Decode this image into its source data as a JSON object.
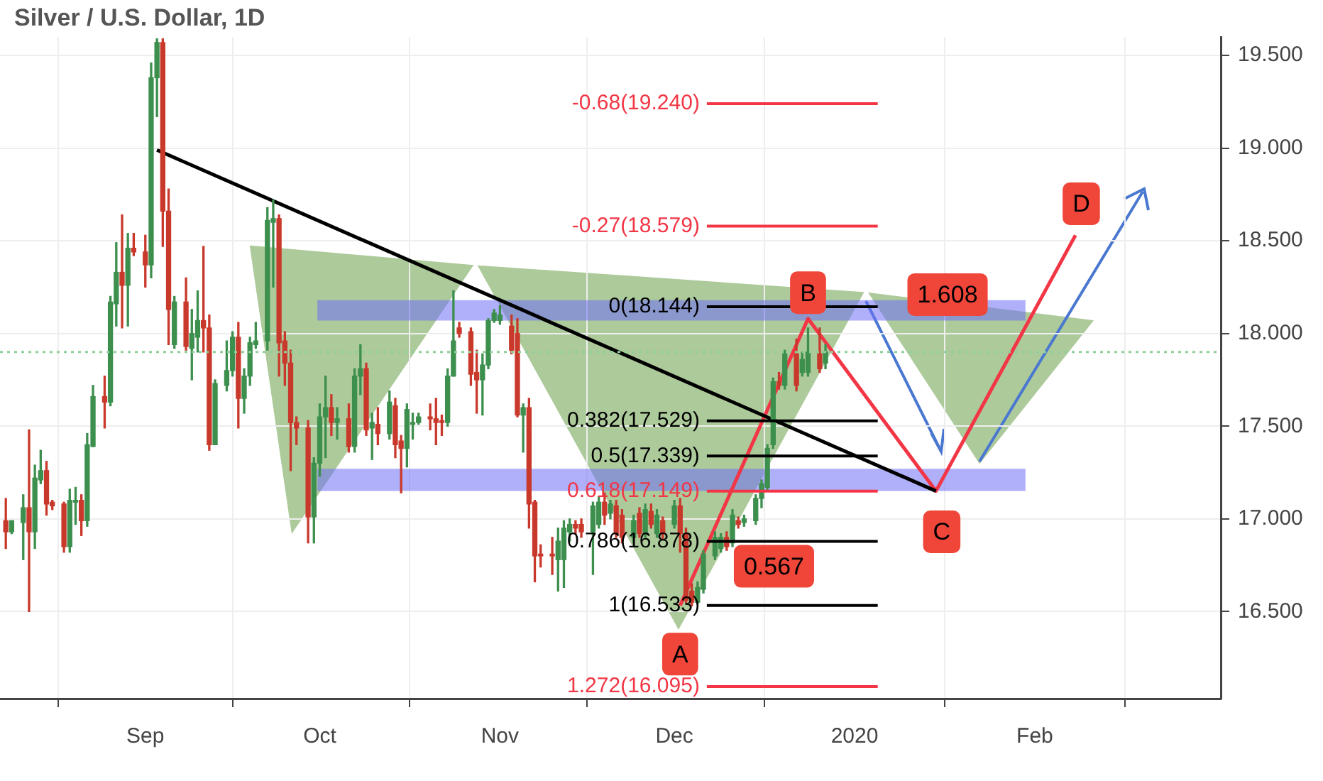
{
  "chart_data": {
    "type": "candlestick",
    "title": "Silver / U.S. Dollar, 1D",
    "x": [
      "2019-08-08",
      "2019-08-09",
      "2019-08-11",
      "2019-08-12",
      "2019-08-13",
      "2019-08-14",
      "2019-08-15",
      "2019-08-16",
      "2019-08-18",
      "2019-08-19",
      "2019-08-20",
      "2019-08-21",
      "2019-08-22",
      "2019-08-23",
      "2019-08-25",
      "2019-08-26",
      "2019-08-27",
      "2019-08-28",
      "2019-08-29",
      "2019-08-30",
      "2019-09-01",
      "2019-09-02",
      "2019-09-03",
      "2019-09-04",
      "2019-09-05",
      "2019-09-06",
      "2019-09-08",
      "2019-09-09",
      "2019-09-10",
      "2019-09-11",
      "2019-09-12",
      "2019-09-13",
      "2019-09-15",
      "2019-09-16",
      "2019-09-17",
      "2019-09-18",
      "2019-09-19",
      "2019-09-20",
      "2019-09-22",
      "2019-09-23",
      "2019-09-24",
      "2019-09-25",
      "2019-09-26",
      "2019-09-27",
      "2019-09-29",
      "2019-09-30",
      "2019-10-01",
      "2019-10-02",
      "2019-10-03",
      "2019-10-04",
      "2019-10-06",
      "2019-10-07",
      "2019-10-08",
      "2019-10-09",
      "2019-10-10",
      "2019-10-11",
      "2019-10-13",
      "2019-10-14",
      "2019-10-15",
      "2019-10-16",
      "2019-10-17",
      "2019-10-18",
      "2019-10-20",
      "2019-10-21",
      "2019-10-22",
      "2019-10-23",
      "2019-10-24",
      "2019-10-25",
      "2019-10-27",
      "2019-10-28",
      "2019-10-29",
      "2019-10-30",
      "2019-10-31",
      "2019-11-01",
      "2019-11-03",
      "2019-11-04",
      "2019-11-05",
      "2019-11-06",
      "2019-11-07",
      "2019-11-08",
      "2019-11-10",
      "2019-11-11",
      "2019-11-12",
      "2019-11-13",
      "2019-11-14",
      "2019-11-15",
      "2019-11-17",
      "2019-11-18",
      "2019-11-19",
      "2019-11-20",
      "2019-11-21",
      "2019-11-22",
      "2019-11-24",
      "2019-11-25",
      "2019-11-26",
      "2019-11-27",
      "2019-11-28",
      "2019-11-29",
      "2019-12-01",
      "2019-12-02",
      "2019-12-03",
      "2019-12-04",
      "2019-12-05",
      "2019-12-06",
      "2019-12-08",
      "2019-12-09",
      "2019-12-10",
      "2019-12-11",
      "2019-12-12",
      "2019-12-13",
      "2019-12-15",
      "2019-12-16",
      "2019-12-17",
      "2019-12-18",
      "2019-12-19",
      "2019-12-20",
      "2019-12-22",
      "2019-12-23",
      "2019-12-24",
      "2019-12-26",
      "2019-12-27"
    ],
    "ohlc": [
      [
        16.99,
        17.11,
        16.84,
        16.93
      ],
      [
        16.93,
        16.99,
        16.92,
        16.99
      ],
      [
        16.98,
        17.13,
        16.78,
        17.06
      ],
      [
        17.06,
        17.48,
        16.5,
        16.93
      ],
      [
        16.93,
        17.29,
        16.84,
        17.22
      ],
      [
        17.21,
        17.37,
        17.19,
        17.26
      ],
      [
        17.26,
        17.31,
        17.02,
        17.08
      ],
      [
        17.09,
        17.1,
        17.05,
        17.07
      ],
      [
        17.08,
        17.09,
        16.82,
        16.85
      ],
      [
        16.85,
        17.16,
        16.82,
        17.1
      ],
      [
        17.09,
        17.17,
        16.97,
        17.1
      ],
      [
        17.1,
        17.13,
        16.91,
        16.99
      ],
      [
        16.99,
        17.46,
        16.96,
        17.4
      ],
      [
        17.39,
        17.72,
        17.39,
        17.66
      ],
      [
        17.66,
        17.77,
        17.49,
        17.63
      ],
      [
        17.63,
        18.2,
        17.61,
        18.17
      ],
      [
        18.16,
        18.49,
        18.04,
        18.33
      ],
      [
        18.33,
        18.64,
        18.03,
        18.26
      ],
      [
        18.26,
        18.54,
        18.04,
        18.46
      ],
      [
        18.46,
        18.54,
        18.42,
        18.44
      ],
      [
        18.44,
        18.53,
        18.25,
        18.37
      ],
      [
        18.37,
        19.46,
        18.3,
        19.38
      ],
      [
        19.38,
        19.59,
        19.17,
        19.57
      ],
      [
        19.57,
        19.59,
        18.47,
        18.66
      ],
      [
        18.66,
        18.78,
        17.94,
        18.13
      ],
      [
        17.94,
        18.2,
        17.92,
        18.17
      ],
      [
        18.17,
        18.3,
        17.91,
        17.93
      ],
      [
        17.92,
        18.13,
        17.75,
        18.0
      ],
      [
        17.98,
        18.23,
        17.9,
        18.07
      ],
      [
        18.07,
        18.47,
        17.9,
        18.03
      ],
      [
        18.03,
        18.1,
        17.37,
        17.4
      ],
      [
        17.4,
        17.75,
        17.4,
        17.73
      ],
      [
        17.72,
        17.96,
        17.69,
        17.8
      ],
      [
        17.8,
        18.01,
        17.77,
        17.98
      ],
      [
        17.98,
        18.06,
        17.49,
        17.65
      ],
      [
        17.65,
        17.81,
        17.57,
        17.77
      ],
      [
        17.77,
        17.98,
        17.72,
        17.95
      ],
      [
        17.94,
        18.06,
        17.92,
        17.96
      ],
      [
        17.96,
        18.68,
        17.91,
        18.61
      ],
      [
        18.6,
        18.72,
        18.25,
        18.62
      ],
      [
        18.62,
        18.64,
        17.77,
        17.95
      ],
      [
        17.96,
        18.01,
        17.72,
        17.84
      ],
      [
        17.84,
        17.91,
        17.26,
        17.52
      ],
      [
        17.52,
        17.55,
        17.4,
        17.49
      ],
      [
        17.49,
        17.53,
        16.87,
        17.01
      ],
      [
        17.01,
        17.33,
        16.87,
        17.3
      ],
      [
        17.3,
        17.62,
        17.23,
        17.55
      ],
      [
        17.55,
        17.77,
        17.33,
        17.6
      ],
      [
        17.6,
        17.67,
        17.45,
        17.52
      ],
      [
        17.52,
        17.6,
        17.43,
        17.54
      ],
      [
        17.54,
        17.62,
        17.36,
        17.39
      ],
      [
        17.39,
        17.81,
        17.36,
        17.77
      ],
      [
        17.77,
        17.94,
        17.67,
        17.81
      ],
      [
        17.81,
        17.84,
        17.45,
        17.48
      ],
      [
        17.49,
        17.57,
        17.32,
        17.52
      ],
      [
        17.51,
        17.6,
        17.4,
        17.46
      ],
      [
        17.46,
        17.69,
        17.43,
        17.63
      ],
      [
        17.61,
        17.65,
        17.33,
        17.4
      ],
      [
        17.42,
        17.45,
        17.14,
        17.38
      ],
      [
        17.38,
        17.62,
        17.28,
        17.59
      ],
      [
        17.51,
        17.57,
        17.43,
        17.52
      ],
      [
        17.52,
        17.57,
        17.51,
        17.55
      ],
      [
        17.55,
        17.62,
        17.48,
        17.54
      ],
      [
        17.54,
        17.65,
        17.4,
        17.52
      ],
      [
        17.53,
        17.56,
        17.45,
        17.52
      ],
      [
        17.52,
        17.81,
        17.5,
        17.77
      ],
      [
        17.77,
        18.23,
        17.77,
        17.96
      ],
      [
        18.03,
        18.06,
        17.98,
        18.0
      ],
      [
        18.01,
        18.03,
        17.72,
        17.78
      ],
      [
        17.79,
        17.91,
        17.57,
        17.75
      ],
      [
        17.75,
        17.89,
        17.56,
        17.83
      ],
      [
        17.83,
        18.08,
        17.81,
        18.07
      ],
      [
        18.07,
        18.13,
        18.06,
        18.11
      ],
      [
        18.07,
        18.15,
        18.05,
        18.1
      ],
      [
        18.04,
        18.1,
        17.89,
        17.91
      ],
      [
        18.0,
        18.08,
        17.55,
        17.56
      ],
      [
        17.56,
        17.62,
        17.36,
        17.6
      ],
      [
        17.6,
        17.65,
        16.95,
        17.08
      ],
      [
        17.09,
        17.1,
        16.66,
        16.8
      ],
      [
        16.81,
        16.86,
        16.74,
        16.8
      ],
      [
        16.81,
        16.9,
        16.7,
        16.8
      ],
      [
        16.78,
        16.95,
        16.61,
        16.88
      ],
      [
        16.78,
        16.99,
        16.63,
        16.95
      ],
      [
        16.93,
        17.0,
        16.88,
        16.97
      ],
      [
        16.97,
        16.99,
        16.92,
        16.95
      ],
      [
        16.97,
        17.0,
        16.9,
        16.93
      ],
      [
        16.93,
        17.09,
        16.7,
        17.07
      ],
      [
        16.97,
        17.12,
        16.95,
        17.09
      ],
      [
        17.09,
        17.14,
        16.97,
        17.02
      ],
      [
        17.03,
        17.1,
        17.0,
        17.08
      ],
      [
        17.07,
        17.1,
        16.9,
        16.92
      ],
      [
        17.02,
        17.05,
        16.87,
        16.9
      ],
      [
        16.9,
        17.02,
        16.87,
        16.99
      ],
      [
        17.03,
        17.06,
        16.9,
        16.92
      ],
      [
        16.92,
        17.08,
        16.9,
        17.05
      ],
      [
        17.04,
        17.08,
        16.95,
        16.97
      ],
      [
        16.92,
        17.05,
        16.9,
        17.02
      ],
      [
        16.99,
        17.01,
        16.89,
        16.92
      ],
      [
        16.97,
        17.1,
        16.95,
        17.07
      ],
      [
        17.07,
        17.11,
        16.82,
        16.92
      ],
      [
        16.92,
        16.95,
        16.55,
        16.56
      ],
      [
        16.61,
        16.65,
        16.53,
        16.55
      ],
      [
        16.55,
        16.66,
        16.54,
        16.63
      ],
      [
        16.62,
        16.83,
        16.6,
        16.81
      ],
      [
        16.8,
        16.93,
        16.78,
        16.9
      ],
      [
        16.84,
        16.92,
        16.82,
        16.9
      ],
      [
        16.9,
        16.93,
        16.83,
        16.85
      ],
      [
        16.87,
        17.05,
        16.85,
        17.02
      ],
      [
        16.99,
        17.01,
        16.95,
        16.97
      ],
      [
        16.98,
        17.02,
        16.96,
        17.0
      ],
      [
        16.99,
        17.13,
        16.97,
        17.11
      ],
      [
        17.11,
        17.21,
        17.06,
        17.19
      ],
      [
        17.17,
        17.4,
        17.15,
        17.38
      ],
      [
        17.4,
        17.76,
        17.38,
        17.74
      ],
      [
        17.74,
        17.79,
        17.7,
        17.72
      ],
      [
        17.72,
        17.91,
        17.7,
        17.89
      ],
      [
        17.89,
        17.97,
        17.69,
        17.72
      ],
      [
        17.79,
        17.9,
        17.77,
        17.86
      ],
      [
        17.79,
        18.03,
        17.77,
        17.9
      ],
      [
        17.89,
        18.03,
        17.79,
        17.81
      ],
      [
        17.84,
        17.94,
        17.81,
        17.9
      ]
    ],
    "colors": [
      "#c8392b",
      "#3d8f4e",
      "#3d8f4e",
      "#c8392b",
      "#3d8f4e",
      "#3d8f4e",
      "#c8392b",
      "#c8392b",
      "#c8392b",
      "#3d8f4e",
      "#3d8f4e",
      "#c8392b",
      "#3d8f4e",
      "#3d8f4e",
      "#c8392b",
      "#3d8f4e",
      "#3d8f4e",
      "#c8392b",
      "#3d8f4e",
      "#c8392b",
      "#c8392b",
      "#3d8f4e",
      "#3d8f4e",
      "#c8392b",
      "#c8392b",
      "#3d8f4e",
      "#c8392b",
      "#3d8f4e",
      "#3d8f4e",
      "#c8392b",
      "#c8392b",
      "#3d8f4e",
      "#3d8f4e",
      "#3d8f4e",
      "#c8392b",
      "#3d8f4e",
      "#3d8f4e",
      "#3d8f4e",
      "#3d8f4e",
      "#3d8f4e",
      "#c8392b",
      "#c8392b",
      "#c8392b",
      "#c8392b",
      "#c8392b",
      "#3d8f4e",
      "#3d8f4e",
      "#3d8f4e",
      "#c8392b",
      "#3d8f4e",
      "#c8392b",
      "#3d8f4e",
      "#3d8f4e",
      "#c8392b",
      "#3d8f4e",
      "#c8392b",
      "#3d8f4e",
      "#c8392b",
      "#c8392b",
      "#3d8f4e",
      "#3d8f4e",
      "#3d8f4e",
      "#c8392b",
      "#c8392b",
      "#c8392b",
      "#3d8f4e",
      "#3d8f4e",
      "#c8392b",
      "#c8392b",
      "#c8392b",
      "#3d8f4e",
      "#3d8f4e",
      "#3d8f4e",
      "#3d8f4e",
      "#c8392b",
      "#c8392b",
      "#3d8f4e",
      "#c8392b",
      "#c8392b",
      "#c8392b",
      "#c8392b",
      "#3d8f4e",
      "#3d8f4e",
      "#3d8f4e",
      "#c8392b",
      "#c8392b",
      "#3d8f4e",
      "#3d8f4e",
      "#c8392b",
      "#3d8f4e",
      "#c8392b",
      "#c8392b",
      "#3d8f4e",
      "#c8392b",
      "#3d8f4e",
      "#c8392b",
      "#3d8f4e",
      "#c8392b",
      "#3d8f4e",
      "#c8392b",
      "#c8392b",
      "#c8392b",
      "#3d8f4e",
      "#3d8f4e",
      "#3d8f4e",
      "#3d8f4e",
      "#c8392b",
      "#3d8f4e",
      "#c8392b",
      "#3d8f4e",
      "#3d8f4e",
      "#3d8f4e",
      "#3d8f4e",
      "#3d8f4e",
      "#c8392b",
      "#3d8f4e",
      "#c8392b",
      "#3d8f4e",
      "#3d8f4e",
      "#c8392b",
      "#3d8f4e"
    ],
    "series": [
      {
        "type": "line",
        "color": "#000000",
        "x": [
          "2019-09-03",
          "2020-01-15"
        ],
        "values": [
          18.99,
          17.15
        ]
      },
      {
        "type": "line",
        "color": "#f23645",
        "x": [
          "2019-12-02",
          "2019-12-24",
          "2020-01-15",
          "2020-02-08"
        ],
        "values": [
          16.533,
          18.08,
          17.15,
          18.53
        ]
      }
    ],
    "xlim": [
      "2019-08-07",
      "2020-03-04"
    ],
    "xticks": [
      {
        "value": "2019-09-01",
        "label": "Sep"
      },
      {
        "value": "2019-10-01",
        "label": "Oct"
      },
      {
        "value": "2019-11-01",
        "label": "Nov"
      },
      {
        "value": "2019-12-01",
        "label": "Dec"
      },
      {
        "value": "2020-01-01",
        "label": "2020"
      },
      {
        "value": "2020-02-01",
        "label": "Feb"
      }
    ],
    "ylim": [
      16.03,
      19.6
    ],
    "yticks": [
      {
        "value": 16.5,
        "label": "16.500"
      },
      {
        "value": 17,
        "label": "17.000"
      },
      {
        "value": 17.5,
        "label": "17.500"
      },
      {
        "value": 18,
        "label": "18.000"
      },
      {
        "value": 18.5,
        "label": "18.500"
      },
      {
        "value": 19,
        "label": "19.000"
      },
      {
        "value": 19.5,
        "label": "19.500"
      }
    ],
    "ref_lines": [
      {
        "axis": "y",
        "value": 19.24,
        "label": "-0.68(19.240)",
        "color": "#f23645"
      },
      {
        "axis": "y",
        "value": 18.579,
        "label": "-0.27(18.579)",
        "color": "#f23645"
      },
      {
        "axis": "y",
        "value": 18.144,
        "label": "0(18.144)",
        "color": "#000000"
      },
      {
        "axis": "y",
        "value": 17.529,
        "label": "0.382(17.529)",
        "color": "#000000"
      },
      {
        "axis": "y",
        "value": 17.339,
        "label": "0.5(17.339)",
        "color": "#000000"
      },
      {
        "axis": "y",
        "value": 17.149,
        "label": "0.618(17.149)",
        "color": "#f23645"
      },
      {
        "axis": "y",
        "value": 16.878,
        "label": "0.786(16.878)",
        "color": "#000000"
      },
      {
        "axis": "y",
        "value": 16.533,
        "label": "1(16.533)",
        "color": "#000000"
      },
      {
        "axis": "y",
        "value": 16.095,
        "label": "1.272(16.095)",
        "color": "#f23645"
      },
      {
        "axis": "y",
        "value": 17.9,
        "color": "#8fcf9a",
        "line_style": "dotted"
      }
    ],
    "bands": [
      {
        "axis": "y",
        "from": 18.07,
        "to": 18.18,
        "color": "#6f6ff5"
      },
      {
        "axis": "y",
        "from": 17.15,
        "to": 17.27,
        "color": "#6f6ff5"
      }
    ],
    "annotations": [
      {
        "text": "A",
        "x": "2019-12-02",
        "y": 16.27
      },
      {
        "text": "B",
        "x": "2019-12-24",
        "y": 18.22
      },
      {
        "text": "C",
        "x": "2020-01-16",
        "y": 16.93
      },
      {
        "text": "D",
        "x": "2020-02-09",
        "y": 18.7
      },
      {
        "text": "1.608",
        "x": "2020-01-17",
        "y": 18.21
      },
      "0.567"
    ],
    "grid": true,
    "legend": false,
    "marker": "none"
  }
}
